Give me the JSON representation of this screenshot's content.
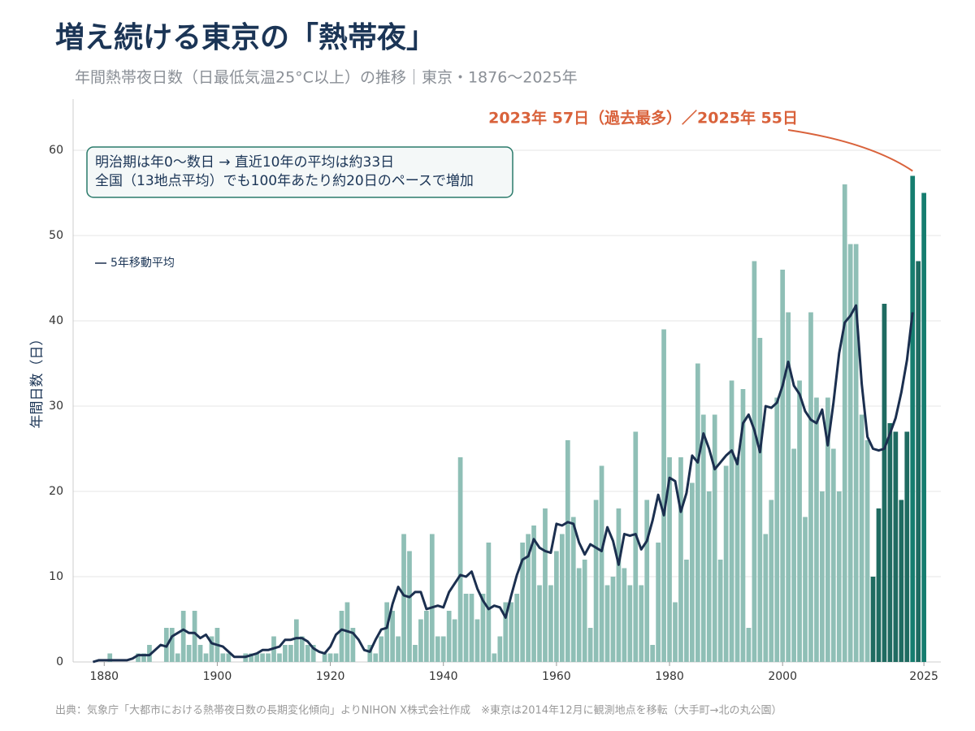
{
  "chart_data": {
    "type": "bar",
    "title": "増え続ける東京の「熱帯夜」",
    "subtitle": "年間熱帯夜日数（日最低気温25°C以上）の推移｜東京・1876〜2025年",
    "y_label": "年間日数（日）",
    "annotation": "2023年 57日（過去最多）／2025年 55日",
    "note_lines": [
      "明治期は年0〜数日 → 直近10年の平均は約33日",
      "全国（13地点平均）でも100年あたり約20日のペースで増加"
    ],
    "source": "出典：気象庁「大都市における熱帯夜日数の長期変化傾向」よりNIHON X株式会社作成　※東京は2014年12月に観測地点を移転（大手町→北の丸公園）",
    "x": [
      1876,
      1877,
      1878,
      1879,
      1880,
      1881,
      1882,
      1883,
      1884,
      1885,
      1886,
      1887,
      1888,
      1889,
      1890,
      1891,
      1892,
      1893,
      1894,
      1895,
      1896,
      1897,
      1898,
      1899,
      1900,
      1901,
      1902,
      1903,
      1904,
      1905,
      1906,
      1907,
      1908,
      1909,
      1910,
      1911,
      1912,
      1913,
      1914,
      1915,
      1916,
      1917,
      1918,
      1919,
      1920,
      1921,
      1922,
      1923,
      1924,
      1925,
      1926,
      1927,
      1928,
      1929,
      1930,
      1931,
      1932,
      1933,
      1934,
      1935,
      1936,
      1937,
      1938,
      1939,
      1940,
      1941,
      1942,
      1943,
      1944,
      1945,
      1946,
      1947,
      1948,
      1949,
      1950,
      1951,
      1952,
      1953,
      1954,
      1955,
      1956,
      1957,
      1958,
      1959,
      1960,
      1961,
      1962,
      1963,
      1964,
      1965,
      1966,
      1967,
      1968,
      1969,
      1970,
      1971,
      1972,
      1973,
      1974,
      1975,
      1976,
      1977,
      1978,
      1979,
      1980,
      1981,
      1982,
      1983,
      1984,
      1985,
      1986,
      1987,
      1988,
      1989,
      1990,
      1991,
      1992,
      1993,
      1994,
      1995,
      1996,
      1997,
      1998,
      1999,
      2000,
      2001,
      2002,
      2003,
      2004,
      2005,
      2006,
      2007,
      2008,
      2009,
      2010,
      2011,
      2012,
      2013,
      2014,
      2015,
      2016,
      2017,
      2018,
      2019,
      2020,
      2021,
      2022,
      2023,
      2024,
      2025
    ],
    "series": [
      {
        "type": "bar",
        "values": [
          0,
          0,
          0,
          0,
          0,
          1,
          0,
          0,
          0,
          0,
          1,
          1,
          2,
          0,
          0,
          4,
          4,
          1,
          6,
          2,
          6,
          2,
          1,
          3,
          4,
          1,
          1,
          0,
          0,
          1,
          1,
          1,
          1,
          1,
          3,
          1,
          2,
          2,
          5,
          3,
          2,
          2,
          0,
          1,
          1,
          1,
          6,
          7,
          4,
          0,
          0,
          2,
          1,
          3,
          7,
          6,
          3,
          15,
          13,
          2,
          5,
          6,
          15,
          3,
          3,
          6,
          5,
          24,
          8,
          8,
          5,
          8,
          14,
          1,
          3,
          7,
          7,
          8,
          14,
          15,
          16,
          9,
          18,
          9,
          13,
          15,
          26,
          17,
          11,
          12,
          4,
          19,
          23,
          9,
          10,
          18,
          11,
          9,
          27,
          9,
          19,
          2,
          14,
          39,
          24,
          7,
          24,
          12,
          21,
          35,
          29,
          20,
          29,
          12,
          23,
          33,
          24,
          32,
          4,
          47,
          38,
          15,
          19,
          31,
          46,
          41,
          25,
          33,
          17,
          41,
          31,
          20,
          31,
          25,
          20,
          56,
          49,
          49,
          29,
          26,
          10,
          18,
          42,
          28,
          27,
          19,
          27,
          57,
          47,
          55
        ],
        "colors": [
          "#8fbfb6",
          "#8fbfb6",
          "#8fbfb6",
          "#8fbfb6",
          "#8fbfb6",
          "#8fbfb6",
          "#8fbfb6",
          "#8fbfb6",
          "#8fbfb6",
          "#8fbfb6",
          "#8fbfb6",
          "#8fbfb6",
          "#8fbfb6",
          "#8fbfb6",
          "#8fbfb6",
          "#8fbfb6",
          "#8fbfb6",
          "#8fbfb6",
          "#8fbfb6",
          "#8fbfb6",
          "#8fbfb6",
          "#8fbfb6",
          "#8fbfb6",
          "#8fbfb6",
          "#8fbfb6",
          "#8fbfb6",
          "#8fbfb6",
          "#8fbfb6",
          "#8fbfb6",
          "#8fbfb6",
          "#8fbfb6",
          "#8fbfb6",
          "#8fbfb6",
          "#8fbfb6",
          "#8fbfb6",
          "#8fbfb6",
          "#8fbfb6",
          "#8fbfb6",
          "#8fbfb6",
          "#8fbfb6",
          "#8fbfb6",
          "#8fbfb6",
          "#8fbfb6",
          "#8fbfb6",
          "#8fbfb6",
          "#8fbfb6",
          "#8fbfb6",
          "#8fbfb6",
          "#8fbfb6",
          "#8fbfb6",
          "#8fbfb6",
          "#8fbfb6",
          "#8fbfb6",
          "#8fbfb6",
          "#8fbfb6",
          "#8fbfb6",
          "#8fbfb6",
          "#8fbfb6",
          "#8fbfb6",
          "#8fbfb6",
          "#8fbfb6",
          "#8fbfb6",
          "#8fbfb6",
          "#8fbfb6",
          "#8fbfb6",
          "#8fbfb6",
          "#8fbfb6",
          "#8fbfb6",
          "#8fbfb6",
          "#8fbfb6",
          "#8fbfb6",
          "#8fbfb6",
          "#8fbfb6",
          "#8fbfb6",
          "#8fbfb6",
          "#8fbfb6",
          "#8fbfb6",
          "#8fbfb6",
          "#8fbfb6",
          "#8fbfb6",
          "#8fbfb6",
          "#8fbfb6",
          "#8fbfb6",
          "#8fbfb6",
          "#8fbfb6",
          "#8fbfb6",
          "#8fbfb6",
          "#8fbfb6",
          "#8fbfb6",
          "#8fbfb6",
          "#8fbfb6",
          "#8fbfb6",
          "#8fbfb6",
          "#8fbfb6",
          "#8fbfb6",
          "#8fbfb6",
          "#8fbfb6",
          "#8fbfb6",
          "#8fbfb6",
          "#8fbfb6",
          "#8fbfb6",
          "#8fbfb6",
          "#8fbfb6",
          "#8fbfb6",
          "#8fbfb6",
          "#8fbfb6",
          "#8fbfb6",
          "#8fbfb6",
          "#8fbfb6",
          "#8fbfb6",
          "#8fbfb6",
          "#8fbfb6",
          "#8fbfb6",
          "#8fbfb6",
          "#8fbfb6",
          "#8fbfb6",
          "#8fbfb6",
          "#8fbfb6",
          "#8fbfb6",
          "#8fbfb6",
          "#8fbfb6",
          "#8fbfb6",
          "#8fbfb6",
          "#8fbfb6",
          "#8fbfb6",
          "#8fbfb6",
          "#8fbfb6",
          "#8fbfb6",
          "#8fbfb6",
          "#8fbfb6",
          "#8fbfb6",
          "#8fbfb6",
          "#8fbfb6",
          "#8fbfb6",
          "#8fbfb6",
          "#8fbfb6",
          "#8fbfb6",
          "#8fbfb6",
          "#8fbfb6",
          "#8fbfb6",
          "#1f6b61",
          "#1f6b61",
          "#1f6b61",
          "#1f6b61",
          "#1f6b61",
          "#1f6b61",
          "#1f6b61",
          "#157d6f",
          "#1f6b61",
          "#157d6f"
        ]
      },
      {
        "type": "line",
        "name": "5年移動平均",
        "color": "#1b2f4f",
        "values": [
          null,
          null,
          0,
          0.2,
          0.2,
          0.2,
          0.2,
          0.2,
          0.2,
          0.4,
          0.8,
          0.8,
          0.8,
          1.4,
          2,
          1.8,
          3,
          3.4,
          3.8,
          3.4,
          3.4,
          2.8,
          3.2,
          2.2,
          2,
          1.8,
          1.2,
          0.6,
          0.6,
          0.6,
          0.8,
          1,
          1.4,
          1.4,
          1.6,
          1.8,
          2.6,
          2.6,
          2.8,
          2.8,
          2.4,
          1.6,
          1.2,
          1,
          1.8,
          3.2,
          3.8,
          3.6,
          3.4,
          2.6,
          1.4,
          1.2,
          2.6,
          3.8,
          4,
          6.8,
          8.8,
          7.8,
          7.6,
          8.2,
          8.2,
          6.2,
          6.4,
          6.6,
          6.4,
          8.2,
          9.2,
          10.2,
          10,
          10.6,
          8.6,
          7.2,
          6.2,
          6.6,
          6.4,
          5.2,
          7.8,
          10.2,
          12,
          12.4,
          14.4,
          13.4,
          13,
          12.8,
          16.2,
          16,
          16.4,
          16.2,
          14,
          12.6,
          13.8,
          13.4,
          13,
          15.8,
          14.2,
          11.4,
          15,
          14.8,
          15,
          13.2,
          14.2,
          16.6,
          19.6,
          17.2,
          21.6,
          21.2,
          17.6,
          19.8,
          24.2,
          23.4,
          26.8,
          25,
          22.6,
          23.4,
          24.2,
          24.8,
          23.2,
          28,
          29,
          27.2,
          24.6,
          30,
          29.8,
          30.4,
          32.4,
          35.2,
          32.4,
          31.4,
          29.4,
          28.4,
          28,
          29.6,
          25.4,
          30.4,
          36.2,
          39.8,
          40.6,
          41.8,
          32.6,
          26.4,
          25,
          24.8,
          25,
          26.8,
          28.6,
          31.6,
          35.4,
          41,
          null,
          null
        ]
      }
    ],
    "xlim": [
      1874.5,
      2028
    ],
    "xticks": [
      1880,
      1900,
      1920,
      1940,
      1960,
      1980,
      2000,
      2025
    ],
    "ylim": [
      0,
      66
    ],
    "yticks": [
      0,
      10,
      20,
      30,
      40,
      50,
      60
    ],
    "grid": true
  }
}
